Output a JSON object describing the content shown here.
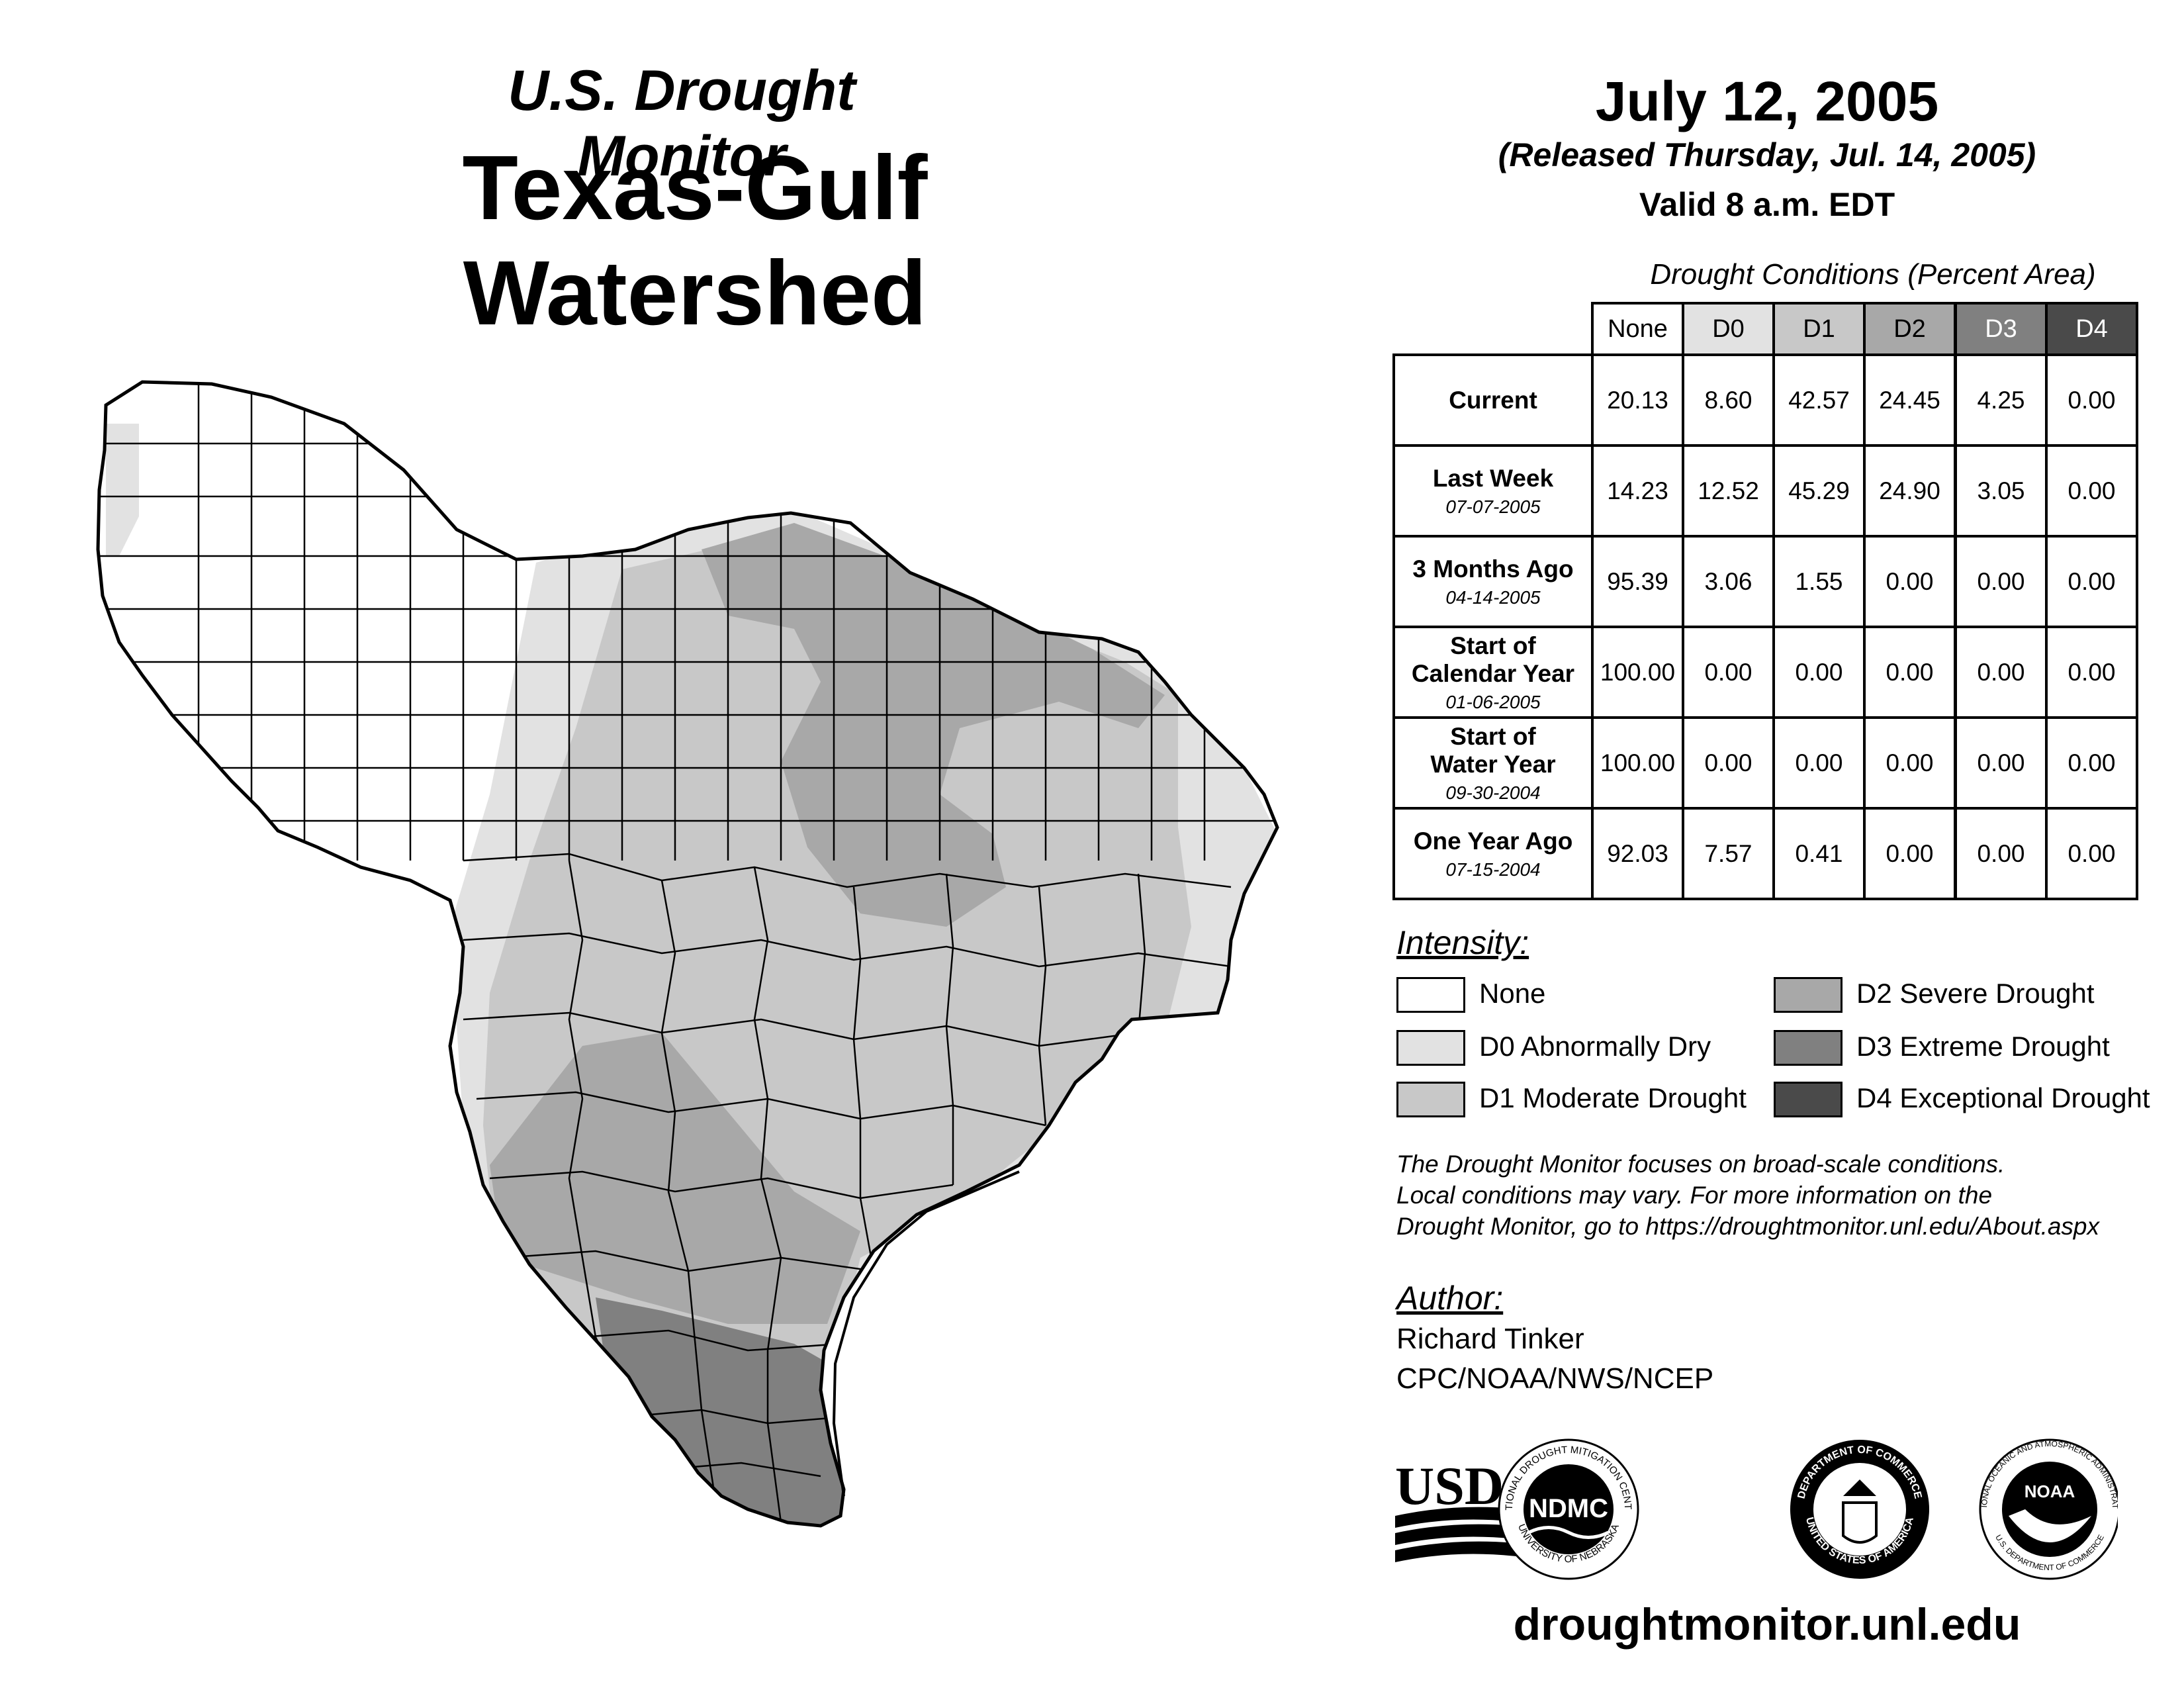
{
  "header": {
    "subtitle": "U.S. Drought Monitor",
    "title": "Texas-Gulf Watershed",
    "date": "July 12, 2005",
    "released": "(Released Thursday, Jul. 14, 2005)",
    "valid": "Valid 8 a.m. EDT"
  },
  "table": {
    "caption": "Drought Conditions (Percent Area)",
    "columns": [
      "None",
      "D0",
      "D1",
      "D2",
      "D3",
      "D4"
    ],
    "rows": [
      {
        "label_lines": [
          "Current"
        ],
        "date": "",
        "values": [
          "20.13",
          "8.60",
          "42.57",
          "24.45",
          "4.25",
          "0.00"
        ]
      },
      {
        "label_lines": [
          "Last Week"
        ],
        "date": "07-07-2005",
        "values": [
          "14.23",
          "12.52",
          "45.29",
          "24.90",
          "3.05",
          "0.00"
        ]
      },
      {
        "label_lines": [
          "3 Months Ago"
        ],
        "date": "04-14-2005",
        "values": [
          "95.39",
          "3.06",
          "1.55",
          "0.00",
          "0.00",
          "0.00"
        ]
      },
      {
        "label_lines": [
          "Start of",
          "Calendar Year"
        ],
        "date": "01-06-2005",
        "values": [
          "100.00",
          "0.00",
          "0.00",
          "0.00",
          "0.00",
          "0.00"
        ]
      },
      {
        "label_lines": [
          "Start of",
          "Water Year"
        ],
        "date": "09-30-2004",
        "values": [
          "100.00",
          "0.00",
          "0.00",
          "0.00",
          "0.00",
          "0.00"
        ]
      },
      {
        "label_lines": [
          "One Year Ago"
        ],
        "date": "07-15-2004",
        "values": [
          "92.03",
          "7.57",
          "0.41",
          "0.00",
          "0.00",
          "0.00"
        ]
      }
    ]
  },
  "legend": {
    "heading": "Intensity:",
    "items": [
      {
        "label": "None",
        "color": "#ffffff"
      },
      {
        "label": "D0 Abnormally Dry",
        "color": "#e2e2e2"
      },
      {
        "label": "D1 Moderate Drought",
        "color": "#c8c8c8"
      },
      {
        "label": "D2 Severe Drought",
        "color": "#a8a8a8"
      },
      {
        "label": "D3 Extreme Drought",
        "color": "#808080"
      },
      {
        "label": "D4 Exceptional Drought",
        "color": "#4a4a4a"
      }
    ]
  },
  "colors": {
    "none": "#ffffff",
    "d0": "#e2e2e2",
    "d1": "#c8c8c8",
    "d2": "#a8a8a8",
    "d3": "#808080",
    "d4": "#4a4a4a"
  },
  "note": {
    "line1": "The Drought Monitor focuses on broad-scale conditions.",
    "line2": "Local conditions may vary. For more information on the",
    "line3": "Drought Monitor, go to https://droughtmonitor.unl.edu/About.aspx"
  },
  "author": {
    "heading": "Author:",
    "name": "Richard Tinker",
    "org": "CPC/NOAA/NWS/NCEP"
  },
  "logos": {
    "usda": "USDA",
    "ndmc": "NDMC",
    "ndmc_ring_top": "NATIONAL DROUGHT MITIGATION CENTER",
    "ndmc_ring_bottom": "UNIVERSITY OF NEBRASKA",
    "doc_ring_top": "DEPARTMENT OF COMMERCE",
    "doc_ring_bottom": "UNITED STATES OF AMERICA",
    "noaa": "NOAA",
    "noaa_ring_top": "NATIONAL OCEANIC AND ATMOSPHERIC ADMINISTRATION",
    "noaa_ring_bottom": "U.S. DEPARTMENT OF COMMERCE"
  },
  "website": "droughtmonitor.unl.edu"
}
